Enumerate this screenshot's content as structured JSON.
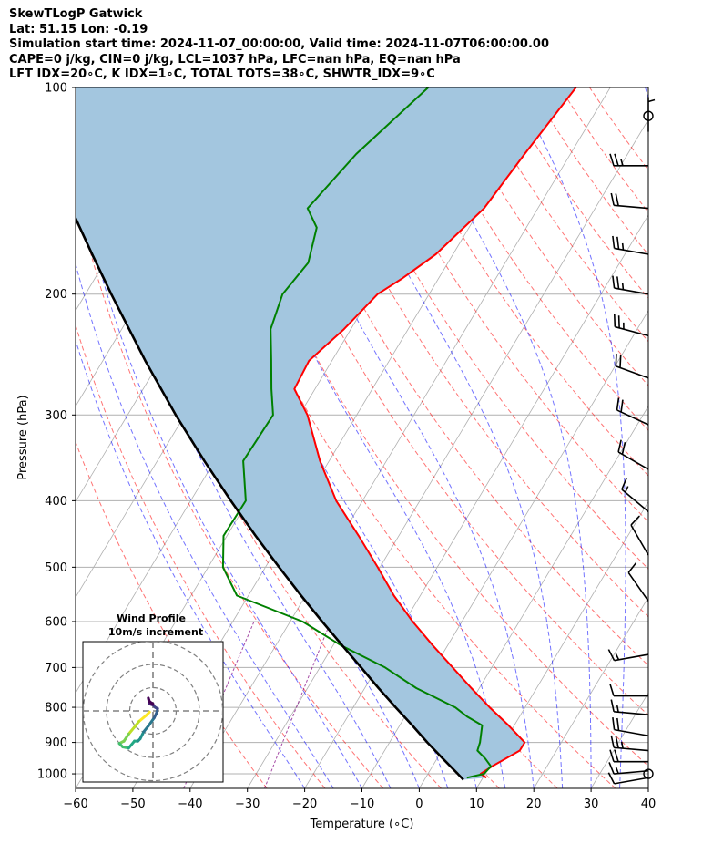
{
  "header": {
    "line1": "SkewTLogP Gatwick",
    "line2": "Lat: 51.15   Lon: -0.19",
    "line3": "Simulation start time: 2024-11-07_00:00:00, Valid time: 2024-11-07T06:00:00.00",
    "line4": "CAPE=0 j/kg, CIN=0 j/kg, LCL=1037 hPa, LFC=nan hPa, EQ=nan hPa",
    "line5": "LFT IDX=20∘C, K IDX=1∘C, TOTAL TOTS=38∘C, SHWTR_IDX=9∘C"
  },
  "chart_data": {
    "type": "line",
    "subtype": "skew-T log-P",
    "xlabel": "Temperature (∘C)",
    "ylabel": "Pressure (hPa)",
    "xlim": [
      -60,
      40
    ],
    "ylim": [
      1050,
      100
    ],
    "y_scale": "log",
    "x_ticks": [
      -60,
      -50,
      -40,
      -30,
      -20,
      -10,
      0,
      10,
      20,
      30,
      40
    ],
    "y_ticks": [
      1000,
      900,
      800,
      700,
      600,
      500,
      400,
      300,
      200,
      100
    ],
    "grid": true,
    "series": [
      {
        "role": "temperature",
        "color": "#ff0000",
        "p": [
          1013,
          1000,
          975,
          950,
          925,
          900,
          850,
          800,
          750,
          700,
          650,
          600,
          550,
          500,
          450,
          400,
          350,
          300,
          275,
          250,
          225,
          200,
          190,
          175,
          150,
          125,
          100
        ],
        "t": [
          10.6,
          9.2,
          10.4,
          12.0,
          13.6,
          13.6,
          9.0,
          3.8,
          -1.4,
          -6.8,
          -12.6,
          -18.6,
          -24.6,
          -30.4,
          -37.0,
          -44.6,
          -51.6,
          -58.6,
          -63.6,
          -64.0,
          -61.2,
          -59.0,
          -56.4,
          -53.0,
          -49.4,
          -48.0,
          -46.0
        ]
      },
      {
        "role": "dewpoint",
        "color": "#008000",
        "p": [
          1013,
          1000,
          975,
          950,
          925,
          900,
          850,
          825,
          800,
          750,
          700,
          650,
          600,
          550,
          500,
          450,
          400,
          350,
          300,
          275,
          250,
          225,
          200,
          180,
          160,
          150,
          125,
          100
        ],
        "t": [
          7.2,
          9.8,
          10.2,
          8.4,
          6.2,
          5.8,
          4.4,
          0.8,
          -2.2,
          -11.0,
          -18.6,
          -28.6,
          -37.8,
          -52.0,
          -57.4,
          -60.6,
          -60.4,
          -65.0,
          -64.6,
          -67.6,
          -70.6,
          -74.0,
          -75.6,
          -74.4,
          -76.6,
          -80.2,
          -77.4,
          -71.8
        ]
      },
      {
        "role": "parcel",
        "color": "#000000",
        "p": [
          1020,
          1000,
          950,
          900,
          850,
          800,
          750,
          700,
          650,
          600,
          550,
          500,
          450,
          400,
          350,
          300,
          250,
          200,
          175,
          150,
          125,
          100
        ],
        "t": [
          6.8,
          5.2,
          1.0,
          -3.4,
          -7.8,
          -12.6,
          -17.6,
          -22.8,
          -28.4,
          -34.4,
          -40.8,
          -47.6,
          -55.0,
          -63.0,
          -71.8,
          -81.6,
          -92.6,
          -105.5,
          -113.0,
          -121.5,
          -131.0,
          -142.5
        ]
      }
    ],
    "shaded_region": {
      "between": [
        "parcel",
        "temperature"
      ],
      "color": "#a3c6df"
    },
    "wind_barbs": {
      "color": "#000000",
      "levels": [
        {
          "p": 1013,
          "speed_kt": 10,
          "dir_deg": 260
        },
        {
          "p": 990,
          "speed_kt": 15,
          "dir_deg": 265
        },
        {
          "p": 960,
          "speed_kt": 20,
          "dir_deg": 270
        },
        {
          "p": 925,
          "speed_kt": 25,
          "dir_deg": 275
        },
        {
          "p": 880,
          "speed_kt": 20,
          "dir_deg": 280
        },
        {
          "p": 820,
          "speed_kt": 15,
          "dir_deg": 275
        },
        {
          "p": 770,
          "speed_kt": 10,
          "dir_deg": 270
        },
        {
          "p": 670,
          "speed_kt": 15,
          "dir_deg": 260
        },
        {
          "p": 560,
          "speed_kt": 10,
          "dir_deg": 325
        },
        {
          "p": 480,
          "speed_kt": 10,
          "dir_deg": 330
        },
        {
          "p": 415,
          "speed_kt": 15,
          "dir_deg": 310
        },
        {
          "p": 360,
          "speed_kt": 20,
          "dir_deg": 300
        },
        {
          "p": 310,
          "speed_kt": 20,
          "dir_deg": 295
        },
        {
          "p": 265,
          "speed_kt": 20,
          "dir_deg": 290
        },
        {
          "p": 230,
          "speed_kt": 25,
          "dir_deg": 285
        },
        {
          "p": 200,
          "speed_kt": 25,
          "dir_deg": 280
        },
        {
          "p": 175,
          "speed_kt": 25,
          "dir_deg": 280
        },
        {
          "p": 150,
          "speed_kt": 20,
          "dir_deg": 275
        },
        {
          "p": 130,
          "speed_kt": 25,
          "dir_deg": 270
        },
        {
          "p": 116,
          "speed_kt": 5,
          "dir_deg": 0
        }
      ],
      "calm_circles_p": [
        1000,
        110
      ]
    },
    "hodograph": {
      "title": "Wind Profile",
      "subtitle": "10m/s increment",
      "rings_ms": [
        10,
        20,
        30
      ],
      "u": [
        -1.5,
        -3.0,
        -6.0,
        -8.0,
        -10.5,
        -12.5,
        -14.5,
        -13.0,
        -10.5,
        -8.0,
        -6.5,
        -5.5,
        -4.0,
        -2.0,
        0.5,
        1.5,
        2.0,
        1.0,
        0.0,
        -1.5,
        -2.0,
        -1.5,
        0.0
      ],
      "v": [
        0.5,
        2.0,
        4.5,
        7.0,
        10.0,
        13.0,
        14.0,
        15.5,
        16.0,
        13.0,
        13.0,
        12.0,
        9.0,
        6.5,
        3.0,
        1.0,
        -1.0,
        -1.5,
        -2.5,
        -3.0,
        -5.5,
        -4.0,
        -3.0
      ]
    },
    "background_lines": {
      "isotherms": "#b0b0b0",
      "dry_adiabats": "#ff0000",
      "moist_adiabats": "#0000ff",
      "mixing_ratio": "#800080"
    }
  }
}
